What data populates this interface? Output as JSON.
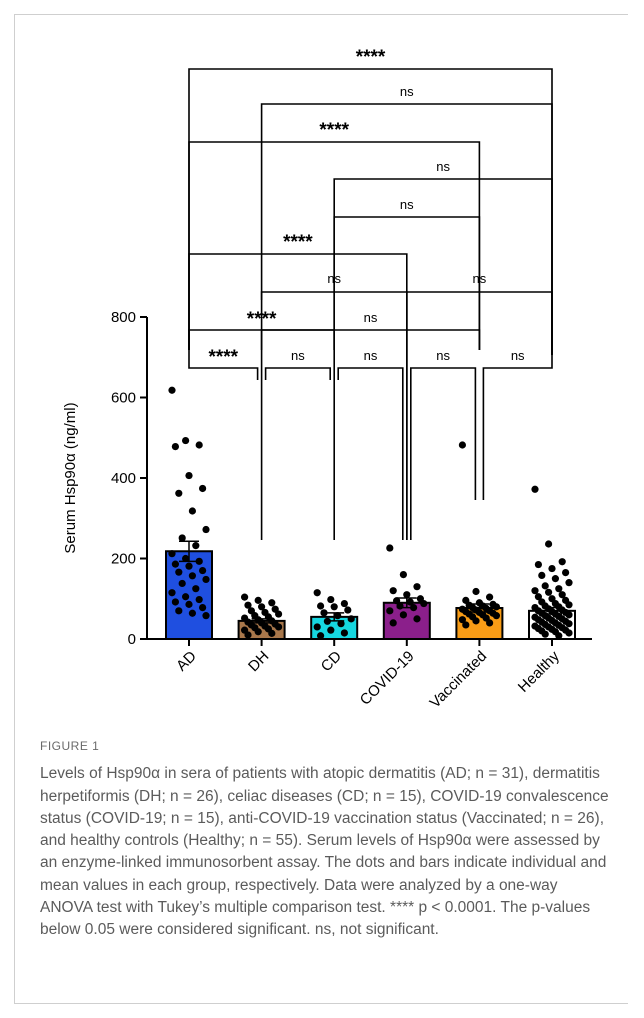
{
  "chart_data": {
    "type": "bar",
    "ylabel": "Serum Hsp90α (ng/ml)",
    "ylim": [
      0,
      800
    ],
    "yticks": [
      0,
      200,
      400,
      600,
      800
    ],
    "categories": [
      "AD",
      "DH",
      "CD",
      "COVID-19",
      "Vaccinated",
      "Healthy"
    ],
    "means": [
      218,
      45,
      55,
      90,
      77,
      70
    ],
    "sem": [
      25,
      5,
      10,
      12,
      10,
      8
    ],
    "bar_colors": [
      "#1f4fe0",
      "#a8774b",
      "#16d7e0",
      "#8b1f8b",
      "#f89c16",
      "#ffffff"
    ],
    "points": [
      [
        618,
        493,
        482,
        478,
        406,
        374,
        362,
        318,
        272,
        251,
        232,
        212,
        200,
        193,
        186,
        181,
        170,
        166,
        157,
        148,
        138,
        125,
        115,
        105,
        98,
        92,
        86,
        78,
        70,
        64,
        58
      ],
      [
        104,
        96,
        90,
        84,
        80,
        74,
        70,
        66,
        62,
        58,
        55,
        52,
        48,
        45,
        42,
        40,
        37,
        35,
        32,
        30,
        28,
        25,
        22,
        18,
        14,
        10
      ],
      [
        115,
        98,
        88,
        82,
        80,
        72,
        65,
        58,
        50,
        44,
        38,
        30,
        22,
        15,
        8
      ],
      [
        226,
        160,
        130,
        120,
        110,
        100,
        95,
        92,
        88,
        82,
        78,
        70,
        60,
        50,
        40
      ],
      [
        482,
        118,
        104,
        96,
        90,
        86,
        84,
        82,
        80,
        78,
        76,
        74,
        72,
        70,
        68,
        66,
        64,
        62,
        60,
        58,
        55,
        52,
        48,
        45,
        40,
        35
      ],
      [
        372,
        236,
        192,
        185,
        175,
        165,
        158,
        150,
        140,
        132,
        125,
        120,
        116,
        110,
        105,
        100,
        96,
        92,
        88,
        85,
        82,
        80,
        78,
        75,
        72,
        70,
        68,
        66,
        64,
        62,
        60,
        58,
        56,
        54,
        52,
        50,
        48,
        46,
        44,
        42,
        40,
        38,
        36,
        34,
        32,
        30,
        28,
        26,
        24,
        22,
        20,
        18,
        15,
        12,
        8
      ]
    ],
    "comparisons": [
      {
        "a": 0,
        "b": 5,
        "label": "****"
      },
      {
        "a": 1,
        "b": 5,
        "label": "ns"
      },
      {
        "a": 0,
        "b": 4,
        "label": "****"
      },
      {
        "a": 2,
        "b": 5,
        "label": "ns"
      },
      {
        "a": 2,
        "b": 4,
        "label": "ns"
      },
      {
        "a": 0,
        "b": 3,
        "label": "****"
      },
      {
        "a": 1,
        "b": 3,
        "label": "ns"
      },
      {
        "a": 3,
        "b": 5,
        "label": "ns"
      },
      {
        "a": 0,
        "b": 2,
        "label": "****"
      },
      {
        "a": 1,
        "b": 4,
        "label": "ns"
      },
      {
        "a": 0,
        "b": 1,
        "label": "****"
      },
      {
        "a": 1,
        "b": 2,
        "label": "ns"
      },
      {
        "a": 2,
        "b": 3,
        "label": "ns"
      },
      {
        "a": 3,
        "b": 4,
        "label": "ns"
      },
      {
        "a": 4,
        "b": 5,
        "label": "ns"
      }
    ]
  },
  "caption": {
    "figure_label": "FIGURE 1",
    "text": "Levels of Hsp90α in sera of patients with atopic dermatitis (AD; n = 31), dermatitis herpetiformis (DH; n = 26), celiac diseases (CD; n = 15), COVID-19 convalescence status (COVID-19; n = 15), anti-COVID-19 vaccination status (Vaccinated; n = 26), and healthy controls (Healthy; n = 55). Serum levels of Hsp90α were assessed by an enzyme-linked immunosorbent assay. The dots and bars indicate individual and mean values in each group, respectively. Data were analyzed by a one-way ANOVA test with Tukey’s multiple comparison test. **** p < 0.0001. The p-values below 0.05 were considered significant. ns, not significant."
  }
}
